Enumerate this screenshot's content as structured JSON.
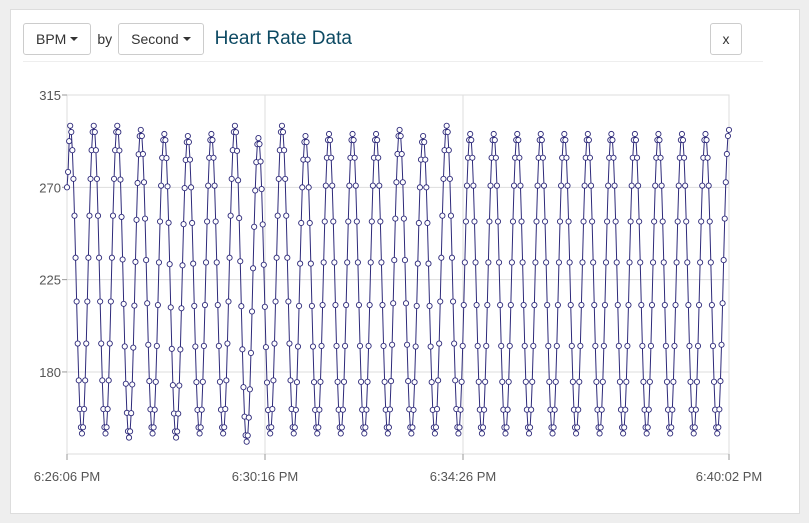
{
  "toolbar": {
    "metric_label": "BPM",
    "by_label": "by",
    "interval_label": "Second",
    "title": "Heart Rate Data",
    "close_label": "x"
  },
  "colors": {
    "line": "#2e2a7a",
    "grid": "#dddddd",
    "title": "#0d4a63"
  },
  "chart_data": {
    "type": "line",
    "title": "Heart Rate Data",
    "xlabel": "",
    "ylabel": "",
    "x_ticks": [
      "6:26:06 PM",
      "6:30:16 PM",
      "6:34:26 PM",
      "6:40:02 PM"
    ],
    "y_ticks": [
      180,
      225,
      270,
      315
    ],
    "ylim": [
      140,
      315
    ],
    "grid": true,
    "series": [
      {
        "cycles": [
          {
            "peak": 300,
            "trough": 150
          },
          {
            "peak": 300,
            "trough": 150
          },
          {
            "peak": 300,
            "trough": 148
          },
          {
            "peak": 298,
            "trough": 150
          },
          {
            "peak": 296,
            "trough": 148
          },
          {
            "peak": 295,
            "trough": 150
          },
          {
            "peak": 296,
            "trough": 150
          },
          {
            "peak": 300,
            "trough": 146
          },
          {
            "peak": 294,
            "trough": 150
          },
          {
            "peak": 300,
            "trough": 150
          },
          {
            "peak": 295,
            "trough": 150
          },
          {
            "peak": 296,
            "trough": 150
          },
          {
            "peak": 296,
            "trough": 150
          },
          {
            "peak": 296,
            "trough": 150
          },
          {
            "peak": 298,
            "trough": 150
          },
          {
            "peak": 295,
            "trough": 150
          },
          {
            "peak": 300,
            "trough": 150
          },
          {
            "peak": 296,
            "trough": 150
          },
          {
            "peak": 296,
            "trough": 150
          },
          {
            "peak": 296,
            "trough": 150
          },
          {
            "peak": 296,
            "trough": 150
          },
          {
            "peak": 296,
            "trough": 150
          },
          {
            "peak": 296,
            "trough": 150
          },
          {
            "peak": 296,
            "trough": 150
          },
          {
            "peak": 296,
            "trough": 150
          },
          {
            "peak": 296,
            "trough": 150
          },
          {
            "peak": 296,
            "trough": 150
          },
          {
            "peak": 296,
            "trough": 150
          }
        ],
        "start_value": 270,
        "points_per_cycle": 22
      }
    ]
  }
}
